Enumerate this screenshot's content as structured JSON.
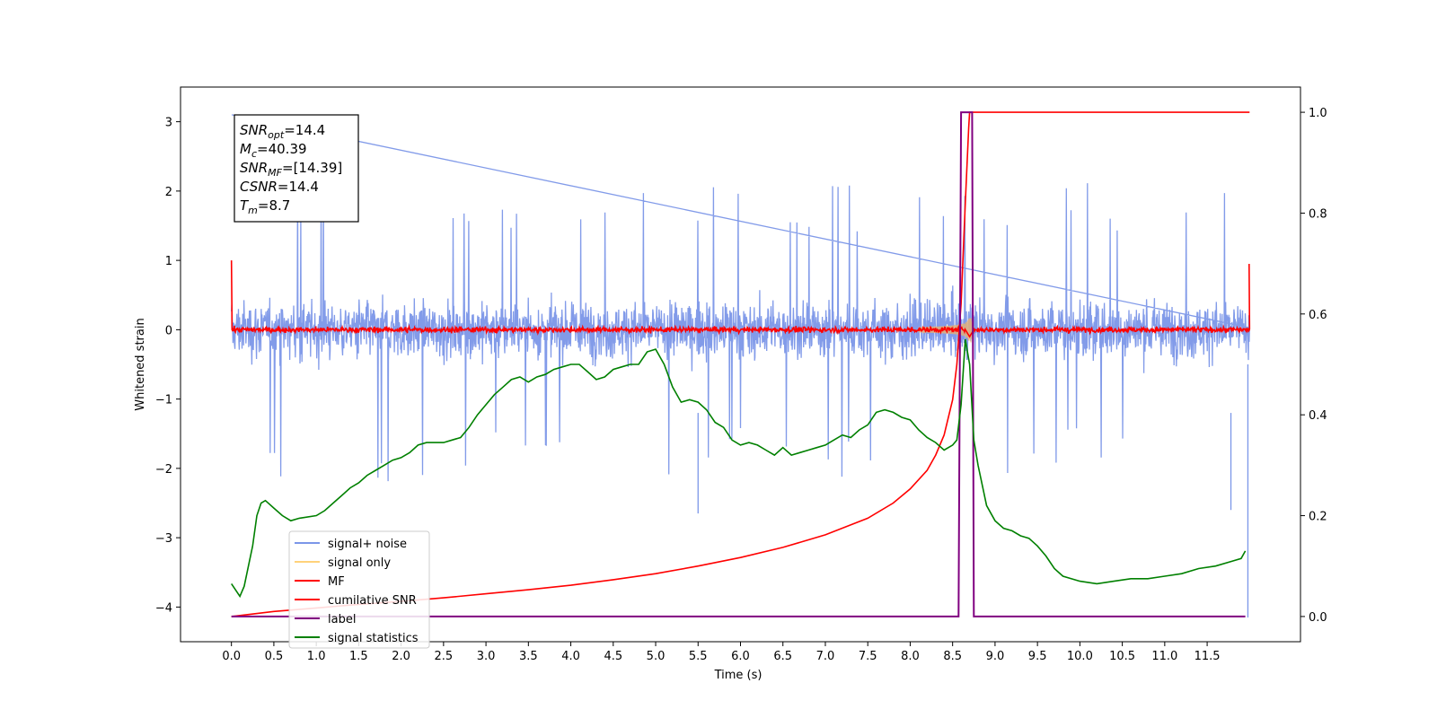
{
  "chart_data": {
    "type": "line",
    "xlabel": "Time (s)",
    "ylabel": "Whitened strain",
    "xlim": [
      -0.6,
      12.6
    ],
    "ylim": [
      -4.5,
      3.5
    ],
    "y2lim": [
      -0.05,
      1.05
    ],
    "x_ticks": [
      "0.0",
      "0.5",
      "1.0",
      "1.5",
      "2.0",
      "2.5",
      "3.0",
      "3.5",
      "4.0",
      "4.5",
      "5.0",
      "5.5",
      "6.0",
      "6.5",
      "7.0",
      "7.5",
      "8.0",
      "8.5",
      "9.0",
      "9.5",
      "10.0",
      "10.5",
      "11.0",
      "11.5"
    ],
    "y_ticks": [
      "3",
      "2",
      "1",
      "0",
      "−1",
      "−2",
      "−3",
      "−4"
    ],
    "y2_ticks": [
      "1.0",
      "0.8",
      "0.6",
      "0.4",
      "0.2",
      "0.0"
    ],
    "annotation": [
      {
        "sym": "SNR",
        "sub": "opt",
        "val": "=14.4"
      },
      {
        "sym": "M",
        "sub": "c",
        "val": "=40.39"
      },
      {
        "sym": "SNR",
        "sub": "MF",
        "val": "=[14.39]"
      },
      {
        "sym": "CSNR",
        "sub": "",
        "val": "=14.4"
      },
      {
        "sym": "T",
        "sub": "m",
        "val": "=8.7"
      }
    ],
    "legend_position": "lower-left",
    "legend": [
      {
        "label": "signal+ noise",
        "color": "#7b96e8"
      },
      {
        "label": "signal only",
        "color": "#ffd27a"
      },
      {
        "label": "MF",
        "color": "#ff0000"
      },
      {
        "label": "cumilative SNR",
        "color": "#ff0000"
      },
      {
        "label": "label",
        "color": "#800080"
      },
      {
        "label": "signal statistics",
        "color": "#008000"
      }
    ],
    "series": [
      {
        "name": "signal+ noise",
        "axis": "left",
        "color": "#7b96e8",
        "noise_band": {
          "x_start": 0.0,
          "x_end": 12.0,
          "typical_low": -1.0,
          "typical_high": 1.0,
          "peak_high": 3.1,
          "peak_low": -2.65
        }
      },
      {
        "name": "signal only",
        "axis": "left",
        "color": "#e8b070",
        "chirp_peak_time": 8.7,
        "peak_amplitude": 0.5
      },
      {
        "name": "MF",
        "axis": "left",
        "color": "#ff0000",
        "x_start": 0.0,
        "x_end": 12.0,
        "start_value": 1.0,
        "noise_amplitude": 0.08,
        "peak_time": 8.7,
        "peak_value": -0.1
      },
      {
        "name": "cumilative SNR",
        "axis": "right",
        "color": "#ff0000",
        "x": [
          0.0,
          0.5,
          1.0,
          1.5,
          2.0,
          2.5,
          3.0,
          3.5,
          4.0,
          4.5,
          5.0,
          5.5,
          6.0,
          6.5,
          7.0,
          7.5,
          7.8,
          8.0,
          8.2,
          8.3,
          8.4,
          8.5,
          8.55,
          8.6,
          8.65,
          8.69,
          8.7,
          8.75,
          9.0,
          10.0,
          11.0,
          12.0
        ],
        "values": [
          0.0,
          0.01,
          0.017,
          0.024,
          0.03,
          0.037,
          0.045,
          0.053,
          0.062,
          0.073,
          0.085,
          0.1,
          0.117,
          0.137,
          0.162,
          0.195,
          0.225,
          0.253,
          0.29,
          0.32,
          0.36,
          0.43,
          0.5,
          0.62,
          0.82,
          0.97,
          1.0,
          1.0,
          1.0,
          1.0,
          1.0,
          1.0
        ]
      },
      {
        "name": "label",
        "axis": "right",
        "color": "#800080",
        "x": [
          0.0,
          8.57,
          8.6,
          8.65,
          8.73,
          8.75,
          11.95
        ],
        "values": [
          0.0,
          0.0,
          1.0,
          1.0,
          1.0,
          0.0,
          0.0
        ]
      },
      {
        "name": "signal statistics",
        "axis": "right",
        "color": "#008000",
        "x": [
          0.0,
          0.1,
          0.15,
          0.2,
          0.25,
          0.3,
          0.35,
          0.4,
          0.5,
          0.6,
          0.7,
          0.8,
          1.0,
          1.1,
          1.2,
          1.3,
          1.4,
          1.5,
          1.6,
          1.7,
          1.8,
          1.9,
          2.0,
          2.1,
          2.2,
          2.3,
          2.4,
          2.5,
          2.6,
          2.7,
          2.8,
          2.9,
          3.0,
          3.1,
          3.2,
          3.3,
          3.4,
          3.5,
          3.6,
          3.7,
          3.8,
          3.9,
          4.0,
          4.1,
          4.2,
          4.3,
          4.4,
          4.5,
          4.6,
          4.7,
          4.8,
          4.9,
          5.0,
          5.1,
          5.2,
          5.3,
          5.4,
          5.5,
          5.6,
          5.7,
          5.8,
          5.9,
          6.0,
          6.1,
          6.2,
          6.3,
          6.4,
          6.5,
          6.6,
          6.7,
          6.8,
          6.9,
          7.0,
          7.1,
          7.2,
          7.3,
          7.4,
          7.5,
          7.6,
          7.7,
          7.8,
          7.9,
          8.0,
          8.1,
          8.2,
          8.3,
          8.4,
          8.5,
          8.55,
          8.6,
          8.65,
          8.7,
          8.75,
          8.8,
          8.9,
          9.0,
          9.1,
          9.2,
          9.3,
          9.4,
          9.5,
          9.6,
          9.7,
          9.8,
          10.0,
          10.2,
          10.4,
          10.6,
          10.8,
          11.0,
          11.2,
          11.4,
          11.6,
          11.8,
          11.9,
          11.95
        ],
        "values": [
          0.065,
          0.04,
          0.06,
          0.1,
          0.14,
          0.2,
          0.225,
          0.23,
          0.215,
          0.2,
          0.19,
          0.195,
          0.2,
          0.21,
          0.225,
          0.24,
          0.255,
          0.265,
          0.28,
          0.29,
          0.3,
          0.31,
          0.315,
          0.325,
          0.34,
          0.345,
          0.345,
          0.345,
          0.35,
          0.355,
          0.375,
          0.4,
          0.42,
          0.44,
          0.455,
          0.47,
          0.475,
          0.465,
          0.475,
          0.48,
          0.49,
          0.495,
          0.5,
          0.5,
          0.485,
          0.47,
          0.475,
          0.49,
          0.495,
          0.5,
          0.5,
          0.525,
          0.53,
          0.5,
          0.455,
          0.425,
          0.43,
          0.425,
          0.41,
          0.385,
          0.375,
          0.35,
          0.34,
          0.345,
          0.34,
          0.33,
          0.32,
          0.335,
          0.32,
          0.325,
          0.33,
          0.335,
          0.34,
          0.35,
          0.36,
          0.355,
          0.37,
          0.38,
          0.405,
          0.41,
          0.405,
          0.395,
          0.39,
          0.37,
          0.355,
          0.345,
          0.33,
          0.34,
          0.35,
          0.42,
          0.55,
          0.5,
          0.35,
          0.3,
          0.22,
          0.19,
          0.175,
          0.17,
          0.16,
          0.155,
          0.14,
          0.12,
          0.095,
          0.08,
          0.07,
          0.065,
          0.07,
          0.075,
          0.075,
          0.08,
          0.085,
          0.095,
          0.1,
          0.11,
          0.115,
          0.13
        ]
      }
    ]
  }
}
